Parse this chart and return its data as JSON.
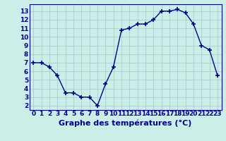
{
  "hours": [
    0,
    1,
    2,
    3,
    4,
    5,
    6,
    7,
    8,
    9,
    10,
    11,
    12,
    13,
    14,
    15,
    16,
    17,
    18,
    19,
    20,
    21,
    22,
    23
  ],
  "temperatures": [
    7.0,
    7.0,
    6.5,
    5.5,
    3.5,
    3.5,
    3.0,
    3.0,
    2.0,
    4.5,
    6.5,
    10.8,
    11.0,
    11.5,
    11.5,
    12.0,
    13.0,
    13.0,
    13.2,
    12.8,
    11.5,
    9.0,
    8.5,
    5.5
  ],
  "xlabel": "Graphe des températures (°C)",
  "ylim": [
    1.5,
    13.8
  ],
  "xlim": [
    -0.5,
    23.5
  ],
  "yticks": [
    2,
    3,
    4,
    5,
    6,
    7,
    8,
    9,
    10,
    11,
    12,
    13
  ],
  "xtick_labels": [
    "0",
    "1",
    "2",
    "3",
    "4",
    "5",
    "6",
    "7",
    "8",
    "9",
    "10",
    "11",
    "12",
    "13",
    "14",
    "15",
    "16",
    "17",
    "18",
    "19",
    "20",
    "21",
    "22",
    "23"
  ],
  "line_color": "#00008b",
  "marker": "+",
  "marker_size": 5,
  "bg_color": "#cceee8",
  "grid_color": "#aacccc",
  "axis_label_color": "#00008b",
  "tick_color": "#00008b",
  "xlabel_fontsize": 8,
  "tick_fontsize": 6.5
}
